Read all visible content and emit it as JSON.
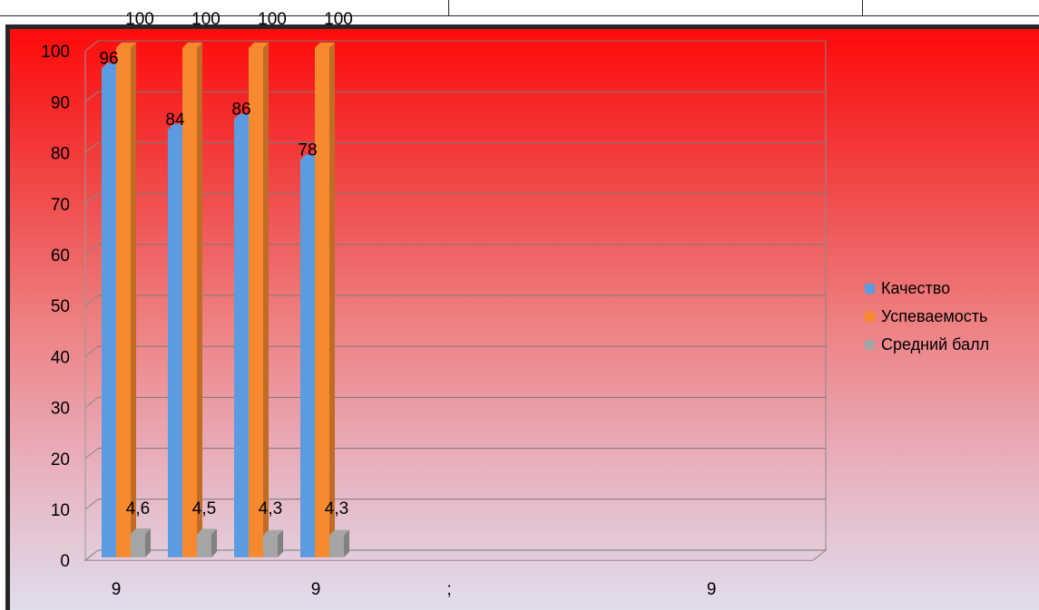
{
  "chart_data": {
    "type": "bar",
    "categories": [
      "9",
      "9",
      ";",
      "9"
    ],
    "series": [
      {
        "name": "Качество",
        "color": "#5b9be0",
        "values": [
          96,
          84,
          86,
          78
        ]
      },
      {
        "name": "Успеваемость",
        "color": "#f78a2e",
        "values": [
          100,
          100,
          100,
          100
        ]
      },
      {
        "name": "Средний балл",
        "color": "#a5a5a5",
        "values": [
          4.6,
          4.5,
          4.3,
          4.3
        ],
        "labels": [
          "4,6",
          "4,5",
          "4,3",
          "4,3"
        ]
      }
    ],
    "ylim": [
      0,
      100
    ],
    "yticks": [
      0,
      10,
      20,
      30,
      40,
      50,
      60,
      70,
      80,
      90,
      100
    ],
    "grid": true,
    "legend_position": "right"
  }
}
